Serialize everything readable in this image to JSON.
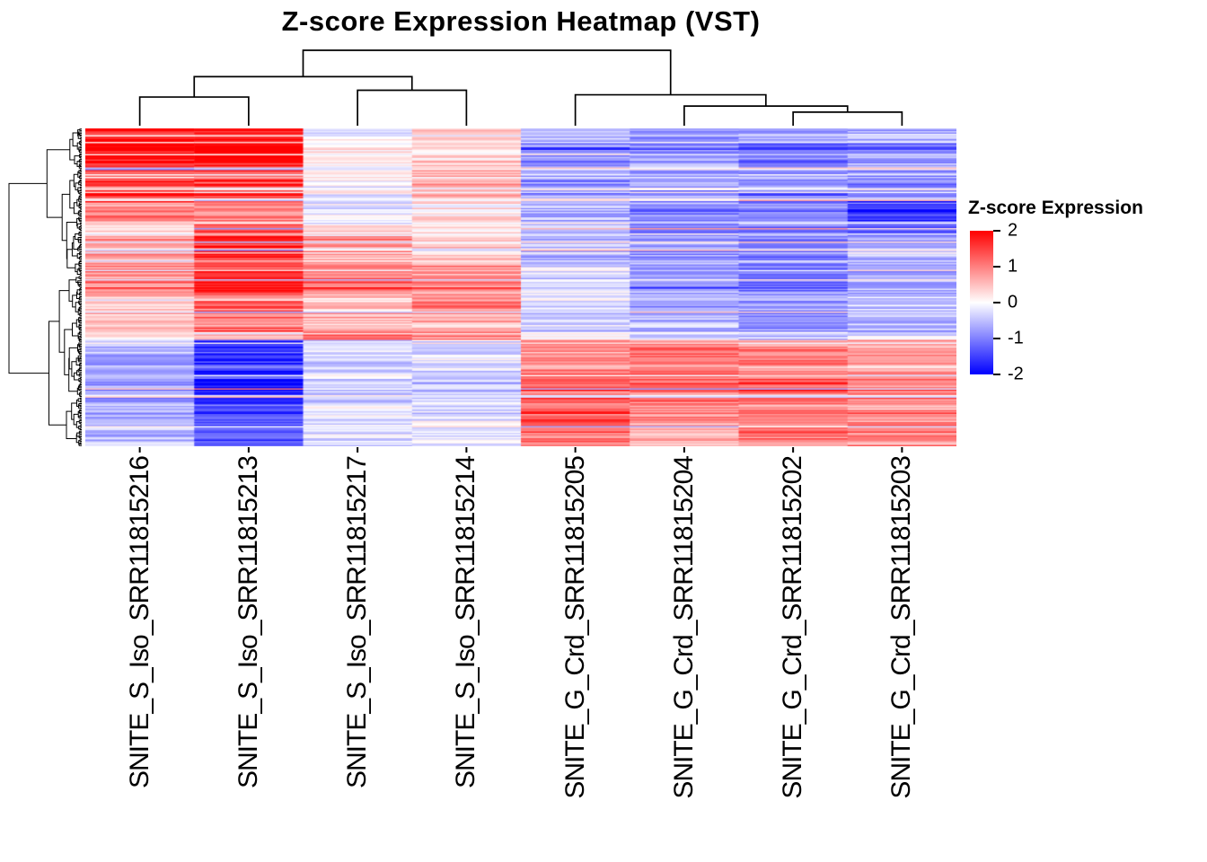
{
  "chart_data": {
    "type": "heatmap",
    "title": "Z-score Expression Heatmap (VST)",
    "columns": [
      "SNITE_S_Iso_SRR11815216",
      "SNITE_S_Iso_SRR11815213",
      "SNITE_S_Iso_SRR11815217",
      "SNITE_S_Iso_SRR11815214",
      "SNITE_G_Crd_SRR11815205",
      "SNITE_G_Crd_SRR11815204",
      "SNITE_G_Crd_SRR11815202",
      "SNITE_G_Crd_SRR11815203"
    ],
    "row_labels_shown": false,
    "clustering": {
      "rows": true,
      "columns": true
    },
    "legend": {
      "title": "Z-score Expression",
      "ticks": [
        "2",
        "1",
        "0",
        "-1",
        "-2"
      ],
      "tick_values": [
        2,
        1,
        0,
        -1,
        -2
      ]
    },
    "colormap": {
      "min": -2,
      "max": 2,
      "negative": "#0000FF",
      "zero": "#FFFFFF",
      "positive": "#FF0000"
    },
    "rows": 236,
    "row_blocks": [
      {
        "from": 0.0,
        "to": 0.045,
        "z": [
          1.9,
          1.9,
          -0.1,
          0.4,
          -0.6,
          -0.9,
          -0.8,
          -0.6
        ]
      },
      {
        "from": 0.045,
        "to": 0.13,
        "z": [
          1.7,
          1.8,
          0.1,
          0.3,
          -0.8,
          -0.7,
          -0.9,
          -0.7
        ]
      },
      {
        "from": 0.13,
        "to": 0.22,
        "z": [
          1.4,
          1.5,
          -0.1,
          0.6,
          -0.7,
          -0.8,
          -0.9,
          -0.8
        ]
      },
      {
        "from": 0.22,
        "to": 0.3,
        "z": [
          0.9,
          0.9,
          -0.2,
          0.2,
          -0.5,
          -0.8,
          -0.9,
          -1.5
        ]
      },
      {
        "from": 0.3,
        "to": 0.34,
        "z": [
          0.4,
          1.1,
          0.3,
          0.1,
          -0.4,
          -0.9,
          -1.1,
          -1.2
        ]
      },
      {
        "from": 0.34,
        "to": 0.43,
        "z": [
          0.7,
          1.6,
          0.8,
          0.3,
          -0.5,
          -0.7,
          -1.0,
          -0.6
        ]
      },
      {
        "from": 0.43,
        "to": 0.52,
        "z": [
          0.8,
          1.5,
          1.0,
          0.7,
          -0.3,
          -0.8,
          -0.9,
          -0.6
        ]
      },
      {
        "from": 0.52,
        "to": 0.58,
        "z": [
          0.4,
          1.2,
          0.4,
          0.9,
          -0.2,
          -0.6,
          -0.8,
          -0.4
        ]
      },
      {
        "from": 0.58,
        "to": 0.64,
        "z": [
          0.5,
          1.0,
          0.6,
          0.6,
          -0.3,
          -0.5,
          -0.7,
          -0.5
        ]
      },
      {
        "from": 0.64,
        "to": 0.665,
        "z": [
          0.2,
          0.6,
          1.2,
          1.0,
          0.2,
          -0.2,
          -0.4,
          -0.2
        ]
      },
      {
        "from": 0.665,
        "to": 0.76,
        "z": [
          -0.6,
          -1.3,
          -0.3,
          -0.2,
          0.8,
          0.9,
          0.8,
          0.6
        ]
      },
      {
        "from": 0.76,
        "to": 0.87,
        "z": [
          -0.7,
          -1.6,
          -0.3,
          -0.3,
          1.1,
          1.0,
          1.0,
          0.9
        ]
      },
      {
        "from": 0.87,
        "to": 0.94,
        "z": [
          -0.6,
          -1.3,
          -0.2,
          -0.2,
          1.3,
          0.8,
          0.9,
          0.8
        ]
      },
      {
        "from": 0.94,
        "to": 1.0,
        "z": [
          -0.5,
          -1.1,
          -0.2,
          -0.1,
          0.9,
          0.7,
          0.9,
          0.8
        ]
      }
    ],
    "col_dendrogram": {
      "h": 1.0,
      "children": [
        {
          "h": 0.65,
          "children": [
            {
              "h": 0.38,
              "children": [
                {
                  "leaf": 0
                },
                {
                  "leaf": 1
                }
              ]
            },
            {
              "h": 0.47,
              "children": [
                {
                  "leaf": 2
                },
                {
                  "leaf": 3
                }
              ]
            }
          ]
        },
        {
          "h": 0.41,
          "children": [
            {
              "leaf": 4
            },
            {
              "h": 0.26,
              "children": [
                {
                  "leaf": 5
                },
                {
                  "h": 0.18,
                  "children": [
                    {
                      "leaf": 6
                    },
                    {
                      "leaf": 7
                    }
                  ]
                }
              ]
            }
          ]
        }
      ]
    }
  }
}
